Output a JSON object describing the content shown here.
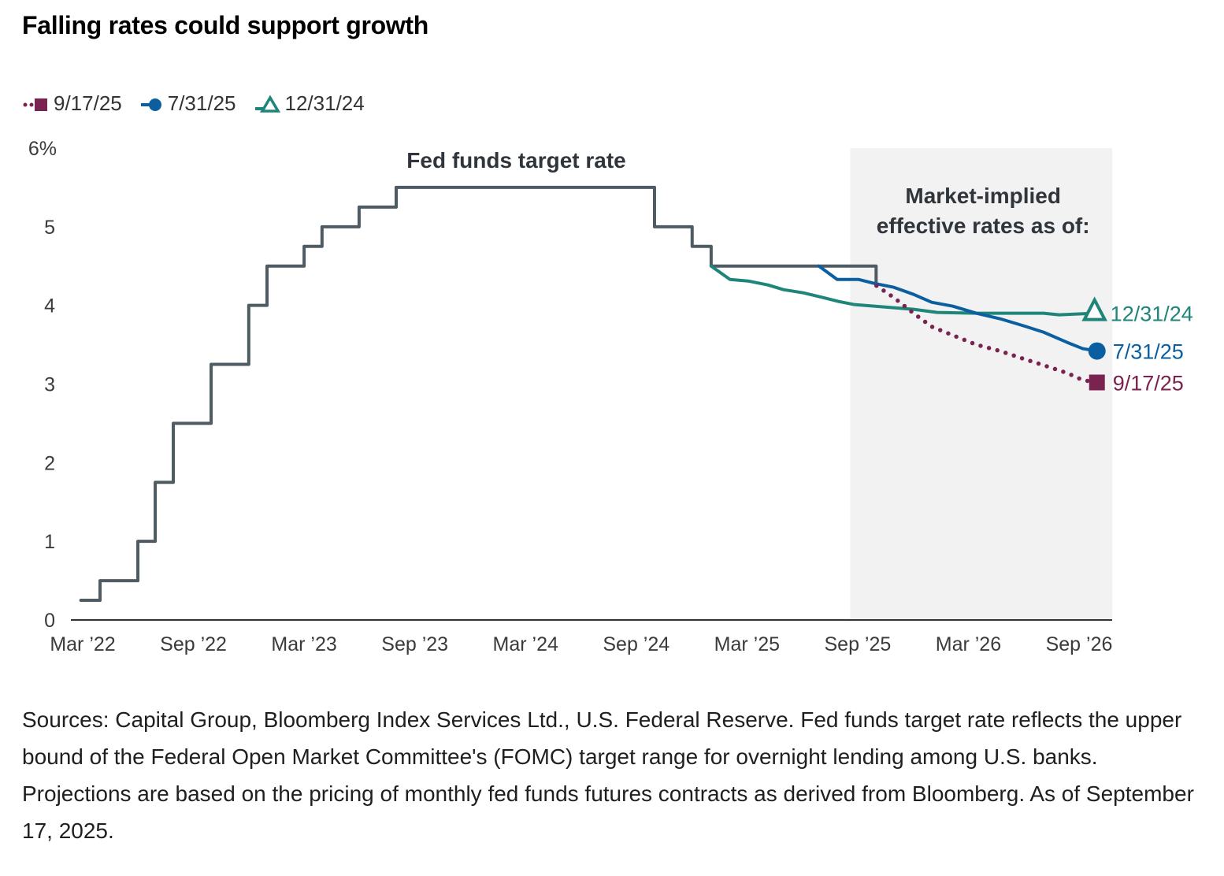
{
  "title": "Falling rates could support growth",
  "legend": [
    {
      "label": "9/17/25",
      "color": "#7a2350",
      "marker": "square",
      "style": "dotted"
    },
    {
      "label": "7/31/25",
      "color": "#0b5fa0",
      "marker": "circle",
      "style": "solid"
    },
    {
      "label": "12/31/24",
      "color": "#1f8579",
      "marker": "triangle",
      "style": "solid"
    }
  ],
  "footnote": "Sources: Capital Group, Bloomberg Index Services Ltd., U.S. Federal Reserve. Fed funds target rate reflects the upper bound of the Federal Open Market Committee's (FOMC) target range for overnight lending among U.S. banks. Projections are based on the pricing of monthly fed funds futures contracts as derived from Bloomberg. As of September 17, 2025.",
  "chart_data": {
    "type": "line",
    "title": "Falling rates could support growth",
    "xlabel": "",
    "ylabel": "",
    "x_unit": "months since Mar 2022",
    "xlim": [
      0,
      54
    ],
    "ylim": [
      0,
      6
    ],
    "y_ticks": [
      {
        "value": 0,
        "label": "0"
      },
      {
        "value": 1,
        "label": "1"
      },
      {
        "value": 2,
        "label": "2"
      },
      {
        "value": 3,
        "label": "3"
      },
      {
        "value": 4,
        "label": "4"
      },
      {
        "value": 5,
        "label": "5"
      },
      {
        "value": 6,
        "label": "6%"
      }
    ],
    "x_ticks": [
      {
        "value": 0,
        "label": "Mar ’22"
      },
      {
        "value": 6,
        "label": "Sep ’22"
      },
      {
        "value": 12,
        "label": "Mar ’23"
      },
      {
        "value": 18,
        "label": "Sep ’23"
      },
      {
        "value": 24,
        "label": "Mar ’24"
      },
      {
        "value": 30,
        "label": "Sep ’24"
      },
      {
        "value": 36,
        "label": "Mar ’25"
      },
      {
        "value": 42,
        "label": "Sep ’25"
      },
      {
        "value": 48,
        "label": "Mar ’26"
      },
      {
        "value": 54,
        "label": "Sep ’26"
      }
    ],
    "grid": false,
    "legend_position": "top-left",
    "shaded_region": {
      "x_start": 41.6,
      "x_end": 55.8,
      "label": "Market-implied effective rates as of:",
      "color": "#f2f2f2"
    },
    "annotations": [
      {
        "text": "Fed funds target rate",
        "x": 23.5,
        "y": 5.85
      },
      {
        "text": "Market-implied",
        "x": 48.8,
        "y": 5.4
      },
      {
        "text": "effective rates as of:",
        "x": 48.8,
        "y": 5.02
      }
    ],
    "series": [
      {
        "name": "Fed funds target rate",
        "type": "step",
        "color": "#4f5b63",
        "points": [
          [
            -0.1,
            0.25
          ],
          [
            0.94,
            0.5
          ],
          [
            2.99,
            1.0
          ],
          [
            3.93,
            1.75
          ],
          [
            4.91,
            2.5
          ],
          [
            6.96,
            3.25
          ],
          [
            9.0,
            4.0
          ],
          [
            9.99,
            4.5
          ],
          [
            12.0,
            4.75
          ],
          [
            12.97,
            5.0
          ],
          [
            14.98,
            5.25
          ],
          [
            16.99,
            5.5
          ],
          [
            30.99,
            5.0
          ],
          [
            33.03,
            4.75
          ],
          [
            34.06,
            4.5
          ],
          [
            43.0,
            4.25
          ]
        ]
      },
      {
        "name": "12/31/24",
        "type": "line",
        "color": "#1f8579",
        "marker": "triangle",
        "end_label": "12/31/24",
        "points": [
          [
            34.06,
            4.5
          ],
          [
            35.08,
            4.33
          ],
          [
            36.06,
            4.31
          ],
          [
            37.13,
            4.26
          ],
          [
            37.98,
            4.2
          ],
          [
            39.05,
            4.16
          ],
          [
            40.12,
            4.1
          ],
          [
            40.97,
            4.05
          ],
          [
            41.83,
            4.01
          ],
          [
            42.89,
            3.99
          ],
          [
            45.03,
            3.95
          ],
          [
            46.31,
            3.91
          ],
          [
            48.44,
            3.9
          ],
          [
            50.15,
            3.9
          ],
          [
            52.07,
            3.9
          ],
          [
            52.92,
            3.88
          ],
          [
            54.84,
            3.9
          ]
        ]
      },
      {
        "name": "7/31/25",
        "type": "line",
        "color": "#0b5fa0",
        "marker": "circle",
        "end_label": "7/31/25",
        "points": [
          [
            39.9,
            4.5
          ],
          [
            40.89,
            4.33
          ],
          [
            42.04,
            4.33
          ],
          [
            42.89,
            4.28
          ],
          [
            43.96,
            4.23
          ],
          [
            45.03,
            4.14
          ],
          [
            46.01,
            4.04
          ],
          [
            47.16,
            3.99
          ],
          [
            48.44,
            3.9
          ],
          [
            49.72,
            3.83
          ],
          [
            51.0,
            3.74
          ],
          [
            52.07,
            3.66
          ],
          [
            53.35,
            3.53
          ],
          [
            54.2,
            3.45
          ],
          [
            54.97,
            3.42
          ]
        ]
      },
      {
        "name": "9/17/25",
        "type": "line",
        "style": "dotted",
        "color": "#7a2350",
        "marker": "square",
        "end_label": "9/17/25",
        "points": [
          [
            43.02,
            4.25
          ],
          [
            43.96,
            4.1
          ],
          [
            45.03,
            3.9
          ],
          [
            46.01,
            3.73
          ],
          [
            47.16,
            3.62
          ],
          [
            48.44,
            3.5
          ],
          [
            49.72,
            3.42
          ],
          [
            51.0,
            3.32
          ],
          [
            52.07,
            3.24
          ],
          [
            53.35,
            3.14
          ],
          [
            54.2,
            3.05
          ],
          [
            54.97,
            3.02
          ]
        ]
      }
    ]
  }
}
